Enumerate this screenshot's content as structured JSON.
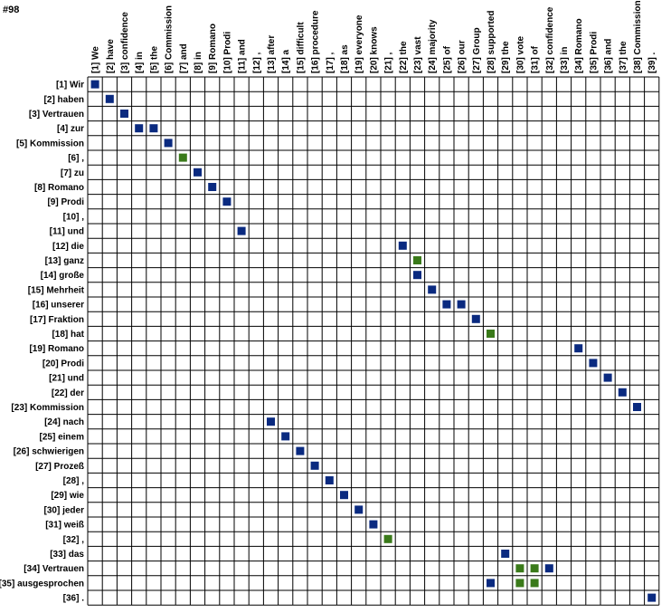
{
  "title": "#98",
  "colors": {
    "sure": "#0a2a80",
    "possible": "#3a7a1a",
    "grid": "#000000"
  },
  "source_words": [
    "[1] Wir",
    "[2] haben",
    "[3] Vertrauen",
    "[4] zur",
    "[5] Kommission",
    "[6] ,",
    "[7] zu",
    "[8] Romano",
    "[9] Prodi",
    "[10] ,",
    "[11] und",
    "[12] die",
    "[13] ganz",
    "[14] große",
    "[15] Mehrheit",
    "[16] unserer",
    "[17] Fraktion",
    "[18] hat",
    "[19] Romano",
    "[20] Prodi",
    "[21] und",
    "[22] der",
    "[23] Kommission",
    "[24] nach",
    "[25] einem",
    "[26] schwierigen",
    "[27] Prozeß",
    "[28] ,",
    "[29] wie",
    "[30] jeder",
    "[31] weiß",
    "[32] ,",
    "[33] das",
    "[34] Vertrauen",
    "[35] ausgesprochen",
    "[36] ."
  ],
  "target_words": [
    "[1] We",
    "[2] have",
    "[3] confidence",
    "[4] in",
    "[5] the",
    "[6] Commission",
    "[7] and",
    "[8] in",
    "[9] Romano",
    "[10] Prodi",
    "[11] and",
    "[12] ,",
    "[13] after",
    "[14] a",
    "[15] difficult",
    "[16] procedure",
    "[17] ,",
    "[18] as",
    "[19] everyone",
    "[20] knows",
    "[21] ,",
    "[22] the",
    "[23] vast",
    "[24] majority",
    "[25] of",
    "[26] our",
    "[27] Group",
    "[28] supported",
    "[29] the",
    "[30] vote",
    "[31] of",
    "[32] confidence",
    "[33] in",
    "[34] Romano",
    "[35] Prodi",
    "[36] and",
    "[37] the",
    "[38] Commission",
    "[39] ."
  ],
  "alignments": [
    {
      "row": 1,
      "col": 1,
      "type": "sure"
    },
    {
      "row": 2,
      "col": 2,
      "type": "sure"
    },
    {
      "row": 3,
      "col": 3,
      "type": "sure"
    },
    {
      "row": 4,
      "col": 4,
      "type": "sure"
    },
    {
      "row": 4,
      "col": 5,
      "type": "sure"
    },
    {
      "row": 5,
      "col": 6,
      "type": "sure"
    },
    {
      "row": 6,
      "col": 7,
      "type": "possible"
    },
    {
      "row": 7,
      "col": 8,
      "type": "sure"
    },
    {
      "row": 8,
      "col": 9,
      "type": "sure"
    },
    {
      "row": 9,
      "col": 10,
      "type": "sure"
    },
    {
      "row": 11,
      "col": 11,
      "type": "sure"
    },
    {
      "row": 12,
      "col": 22,
      "type": "sure"
    },
    {
      "row": 13,
      "col": 23,
      "type": "possible"
    },
    {
      "row": 14,
      "col": 23,
      "type": "sure"
    },
    {
      "row": 15,
      "col": 24,
      "type": "sure"
    },
    {
      "row": 16,
      "col": 25,
      "type": "sure"
    },
    {
      "row": 16,
      "col": 26,
      "type": "sure"
    },
    {
      "row": 17,
      "col": 27,
      "type": "sure"
    },
    {
      "row": 18,
      "col": 28,
      "type": "possible"
    },
    {
      "row": 19,
      "col": 34,
      "type": "sure"
    },
    {
      "row": 20,
      "col": 35,
      "type": "sure"
    },
    {
      "row": 21,
      "col": 36,
      "type": "sure"
    },
    {
      "row": 22,
      "col": 37,
      "type": "sure"
    },
    {
      "row": 23,
      "col": 38,
      "type": "sure"
    },
    {
      "row": 24,
      "col": 13,
      "type": "sure"
    },
    {
      "row": 25,
      "col": 14,
      "type": "sure"
    },
    {
      "row": 26,
      "col": 15,
      "type": "sure"
    },
    {
      "row": 27,
      "col": 16,
      "type": "sure"
    },
    {
      "row": 28,
      "col": 17,
      "type": "sure"
    },
    {
      "row": 29,
      "col": 18,
      "type": "sure"
    },
    {
      "row": 30,
      "col": 19,
      "type": "sure"
    },
    {
      "row": 31,
      "col": 20,
      "type": "sure"
    },
    {
      "row": 32,
      "col": 21,
      "type": "possible"
    },
    {
      "row": 33,
      "col": 29,
      "type": "sure"
    },
    {
      "row": 34,
      "col": 30,
      "type": "possible"
    },
    {
      "row": 34,
      "col": 31,
      "type": "possible"
    },
    {
      "row": 34,
      "col": 32,
      "type": "sure"
    },
    {
      "row": 35,
      "col": 28,
      "type": "sure"
    },
    {
      "row": 35,
      "col": 30,
      "type": "possible"
    },
    {
      "row": 35,
      "col": 31,
      "type": "possible"
    },
    {
      "row": 36,
      "col": 39,
      "type": "sure"
    }
  ]
}
